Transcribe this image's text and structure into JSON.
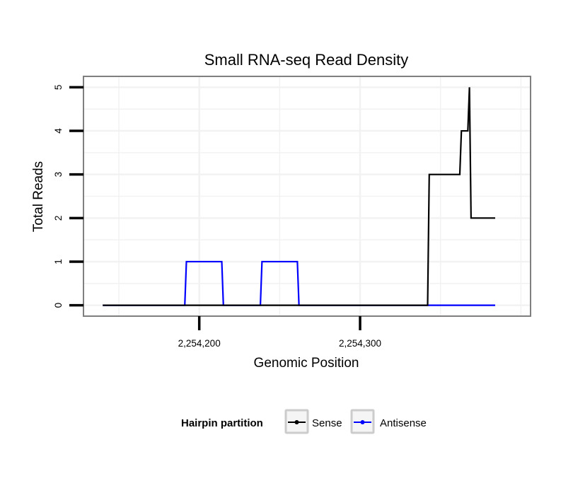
{
  "chart_data": {
    "type": "line",
    "title": "Small RNA-seq Read Density",
    "xlabel": "Genomic Position",
    "ylabel": "Total Reads",
    "xlim": [
      2254128,
      2254406
    ],
    "ylim": [
      -0.25,
      5.25
    ],
    "x_ticks": [
      2254200,
      2254300
    ],
    "x_tick_labels": [
      "2,254,200",
      "2,254,300"
    ],
    "y_ticks": [
      0,
      1,
      2,
      3,
      4,
      5
    ],
    "y_tick_labels": [
      "0",
      "1",
      "2",
      "3",
      "4",
      "5"
    ],
    "grid": true,
    "legend": {
      "title": "Hairpin partition",
      "position": "bottom",
      "entries": [
        "Sense",
        "Antisense"
      ]
    },
    "series": [
      {
        "name": "Sense",
        "color": "#000000",
        "points": [
          [
            2254140,
            0
          ],
          [
            2254342,
            0
          ],
          [
            2254343,
            3
          ],
          [
            2254362,
            3
          ],
          [
            2254363,
            4
          ],
          [
            2254367,
            4
          ],
          [
            2254368,
            5
          ],
          [
            2254369,
            2
          ],
          [
            2254384,
            2
          ]
        ]
      },
      {
        "name": "Antisense",
        "color": "#0000ff",
        "points": [
          [
            2254140,
            0
          ],
          [
            2254191,
            0
          ],
          [
            2254192,
            1
          ],
          [
            2254214,
            1
          ],
          [
            2254215,
            0
          ],
          [
            2254238,
            0
          ],
          [
            2254239,
            1
          ],
          [
            2254261,
            1
          ],
          [
            2254262,
            0
          ],
          [
            2254384,
            0
          ]
        ]
      }
    ]
  }
}
